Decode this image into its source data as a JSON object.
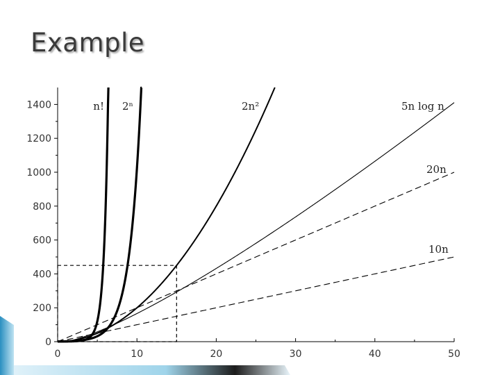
{
  "slide": {
    "title": "Example"
  },
  "chart_data": {
    "type": "line",
    "title": "",
    "xlabel": "",
    "ylabel": "",
    "xlim": [
      0,
      50
    ],
    "ylim": [
      0,
      1500
    ],
    "x_ticks": [
      0,
      10,
      20,
      30,
      40,
      50
    ],
    "y_ticks": [
      0,
      200,
      400,
      600,
      800,
      1000,
      1200,
      1400
    ],
    "grid": false,
    "legend": "inline labels near curve ends",
    "series": [
      {
        "name": "n!",
        "formula": "factorial",
        "style": "solid",
        "weight": "heavy"
      },
      {
        "name": "2ⁿ",
        "formula": "pow2",
        "style": "solid",
        "weight": "heavy"
      },
      {
        "name": "2n²",
        "formula": "2n^2",
        "style": "solid",
        "weight": "medium"
      },
      {
        "name": "5n log n",
        "formula": "5nlog2n",
        "style": "solid",
        "weight": "thin"
      },
      {
        "name": "20n",
        "formula": "20n",
        "style": "dashed",
        "weight": "thin"
      },
      {
        "name": "10n",
        "formula": "10n",
        "style": "dashed",
        "weight": "thin"
      }
    ],
    "annotations": [
      {
        "type": "dashed-box",
        "x_range": [
          0,
          15
        ],
        "y_range": [
          0,
          450
        ]
      }
    ]
  },
  "colors": {
    "title": "#3a3a3a",
    "line": "#000000",
    "accent": "#4aa0c8"
  }
}
